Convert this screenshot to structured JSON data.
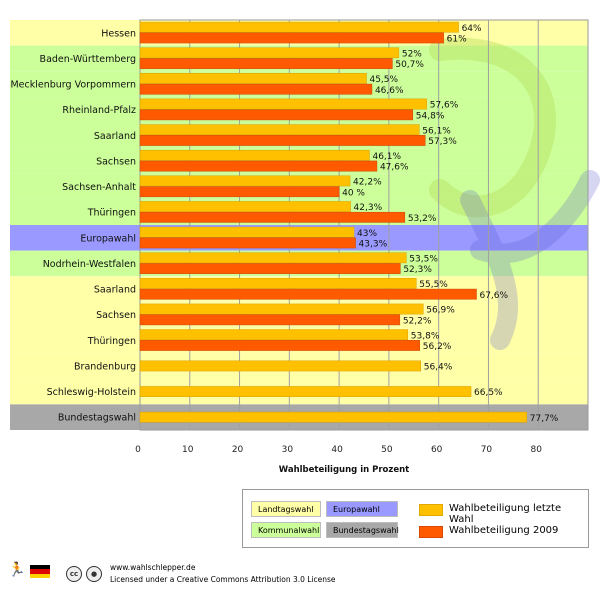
{
  "chart_data": {
    "type": "bar",
    "orientation": "horizontal",
    "xlabel": "Wahlbeteiligung in Prozent",
    "xlim": [
      0,
      90
    ],
    "xticks": [
      0,
      10,
      20,
      30,
      40,
      50,
      60,
      70,
      80
    ],
    "grid": true,
    "categories": [
      {
        "label": "Hessen",
        "group": "Landtagswahl",
        "last": 64,
        "last_label": "64%",
        "current": 61,
        "current_label": "61%"
      },
      {
        "label": "Baden-Württemberg",
        "group": "Kommunalwahl",
        "last": 52,
        "last_label": "52%",
        "current": 50.7,
        "current_label": "50,7%"
      },
      {
        "label": "Mecklenburg Vorpommern",
        "group": "Kommunalwahl",
        "last": 45.5,
        "last_label": "45,5%",
        "current": 46.6,
        "current_label": "46,6%"
      },
      {
        "label": "Rheinland-Pfalz",
        "group": "Kommunalwahl",
        "last": 57.6,
        "last_label": "57,6%",
        "current": 54.8,
        "current_label": "54,8%"
      },
      {
        "label": "Saarland",
        "group": "Kommunalwahl",
        "last": 56.1,
        "last_label": "56,1%",
        "current": 57.3,
        "current_label": "57,3%"
      },
      {
        "label": "Sachsen",
        "group": "Kommunalwahl",
        "last": 46.1,
        "last_label": "46,1%",
        "current": 47.6,
        "current_label": "47,6%"
      },
      {
        "label": "Sachsen-Anhalt",
        "group": "Kommunalwahl",
        "last": 42.2,
        "last_label": "42,2%",
        "current": 40,
        "current_label": "40 %"
      },
      {
        "label": "Thüringen",
        "group": "Kommunalwahl",
        "last": 42.3,
        "last_label": "42,3%",
        "current": 53.2,
        "current_label": "53,2%"
      },
      {
        "label": "Europawahl",
        "group": "Europawahl",
        "last": 43,
        "last_label": "43%",
        "current": 43.3,
        "current_label": "43,3%"
      },
      {
        "label": "Nodrhein-Westfalen",
        "group": "Kommunalwahl",
        "last": 53.5,
        "last_label": "53,5%",
        "current": 52.3,
        "current_label": "52,3%"
      },
      {
        "label": "Saarland",
        "group": "Landtagswahl",
        "last": 55.5,
        "last_label": "55,5%",
        "current": 67.6,
        "current_label": "67,6%"
      },
      {
        "label": "Sachsen",
        "group": "Landtagswahl",
        "last": 56.9,
        "last_label": "56,9%",
        "current": 52.2,
        "current_label": "52,2%"
      },
      {
        "label": "Thüringen",
        "group": "Landtagswahl",
        "last": 53.8,
        "last_label": "53,8%",
        "current": 56.2,
        "current_label": "56,2%"
      },
      {
        "label": "Brandenburg",
        "group": "Landtagswahl",
        "last": 56.4,
        "last_label": "56,4%",
        "current": null,
        "current_label": ""
      },
      {
        "label": "Schleswig-Holstein",
        "group": "Landtagswahl",
        "last": 66.5,
        "last_label": "66,5%",
        "current": null,
        "current_label": ""
      },
      {
        "label": "Bundestagswahl",
        "group": "Bundestagswahl",
        "last": 77.7,
        "last_label": "77,7%",
        "current": null,
        "current_label": ""
      }
    ],
    "series": [
      {
        "name": "Wahlbeteiligung letzte Wahl",
        "key": "last",
        "color": "#ffc000"
      },
      {
        "name": "Wahlbeteiligung 2009",
        "key": "current",
        "color": "#ff5a00"
      }
    ]
  },
  "colors": {
    "Landtagswahl": "#ffffa8",
    "Kommunalwahl": "#ccff99",
    "Europawahl": "#9999ff",
    "Bundestagswahl": "#a8a8a8"
  },
  "legend": {
    "groups": [
      {
        "label": "Landtagswahl",
        "key": "Landtagswahl"
      },
      {
        "label": "Europawahl",
        "key": "Europawahl"
      },
      {
        "label": "Kommunalwahl",
        "key": "Kommunalwahl"
      },
      {
        "label": "Bundestagswahl",
        "key": "Bundestagswahl"
      }
    ],
    "series": [
      {
        "label": "Wahlbeteiligung letzte Wahl"
      },
      {
        "label": "Wahlbeteiligung 2009"
      }
    ]
  },
  "footer": {
    "website": "www.wahlschlepper.de",
    "license": "Licensed under a Creative Commons Attribution 3.0 License",
    "cc_icon": "cc-icon",
    "by_icon": "by-icon"
  }
}
